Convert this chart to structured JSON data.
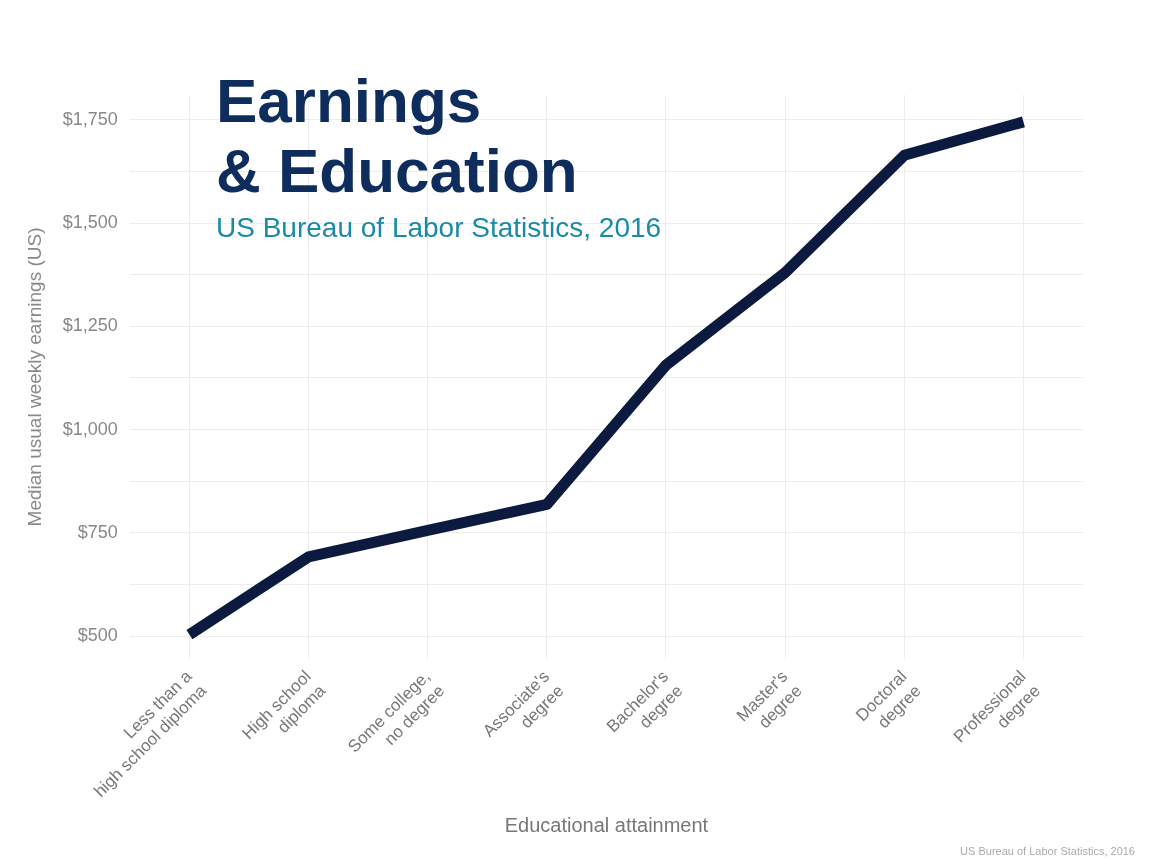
{
  "chart_data": {
    "type": "line",
    "title": "Earnings\n& Education",
    "subtitle": "US Bureau of Labor Statistics, 2016",
    "xlabel": "Educational attainment",
    "ylabel": "Median usual weekly earnings (US)",
    "categories": [
      "Less than a\nhigh school diploma",
      "High school\ndiploma",
      "Some college,\nno degree",
      "Associate's\ndegree",
      "Bachelor's\ndegree",
      "Master's\ndegree",
      "Doctoral\ndegree",
      "Professional\ndegree"
    ],
    "series": [
      {
        "color": "#0c1a3f",
        "values": [
          504,
          692,
          756,
          819,
          1156,
          1380,
          1664,
          1745
        ]
      }
    ],
    "ylim": [
      445,
      1810
    ],
    "yticks": [
      {
        "value": 500,
        "label": "$500"
      },
      {
        "value": 625,
        "label": null
      },
      {
        "value": 750,
        "label": "$750"
      },
      {
        "value": 875,
        "label": null
      },
      {
        "value": 1000,
        "label": "$1,000"
      },
      {
        "value": 1125,
        "label": null
      },
      {
        "value": 1250,
        "label": "$1,250"
      },
      {
        "value": 1375,
        "label": null
      },
      {
        "value": 1500,
        "label": "$1,500"
      },
      {
        "value": 1625,
        "label": null
      },
      {
        "value": 1750,
        "label": "$1,750"
      }
    ],
    "grid": true,
    "legend": false,
    "marker": "none",
    "line_style": "solid",
    "annotations": [
      "US Bureau of Labor Statistics, 2016"
    ]
  }
}
